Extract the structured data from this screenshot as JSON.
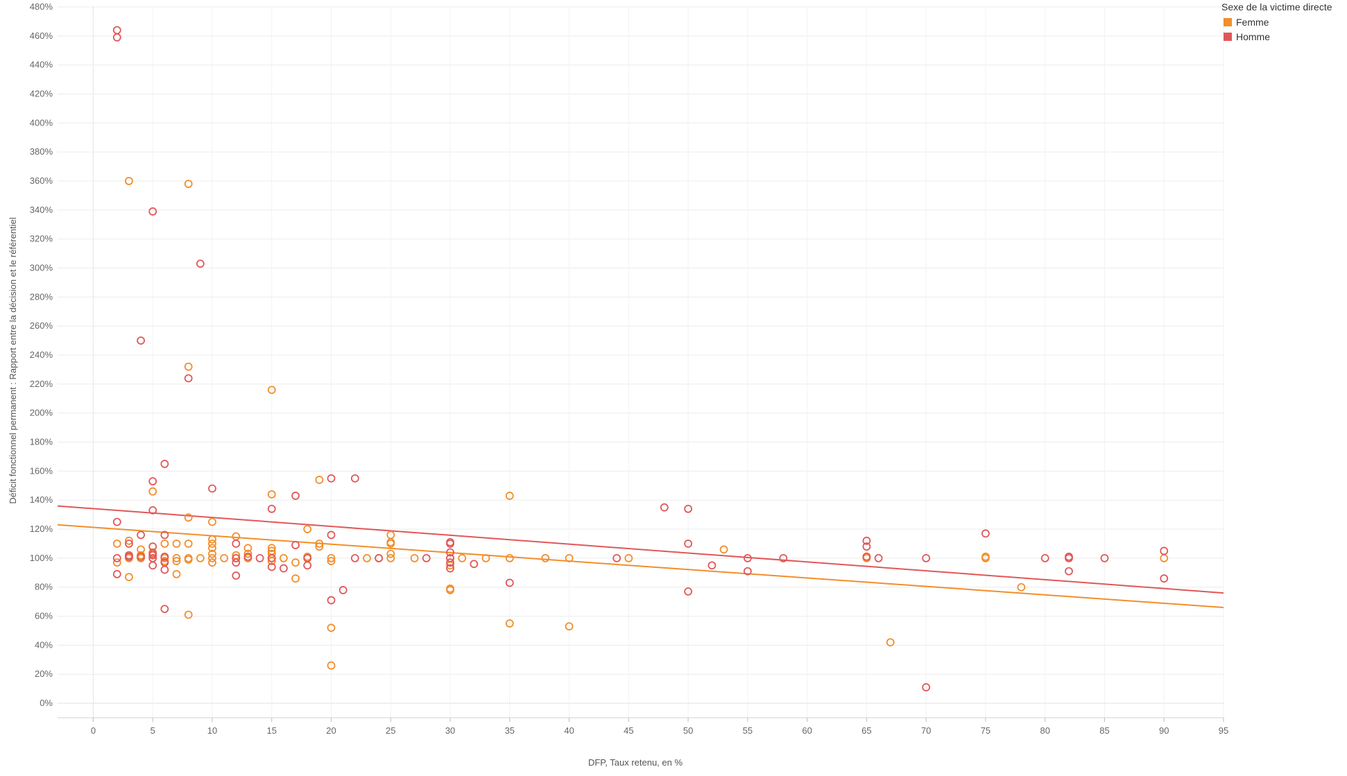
{
  "chart_data": {
    "type": "scatter",
    "title": "",
    "xlabel": "DFP, Taux retenu, en %",
    "ylabel": "Déficit fonctionnel permanent : Rapport entre la décision et le référentiel",
    "xlim": [
      -3,
      95
    ],
    "ylim": [
      -10,
      480
    ],
    "x_ticks": [
      0,
      5,
      10,
      15,
      20,
      25,
      30,
      35,
      40,
      45,
      50,
      55,
      60,
      65,
      70,
      75,
      80,
      85,
      90,
      95
    ],
    "y_ticks": [
      0,
      20,
      40,
      60,
      80,
      100,
      120,
      140,
      160,
      180,
      200,
      220,
      240,
      260,
      280,
      300,
      320,
      340,
      360,
      380,
      400,
      420,
      440,
      460,
      480
    ],
    "y_tick_labels": [
      "0%",
      "20%",
      "40%",
      "60%",
      "80%",
      "100%",
      "120%",
      "140%",
      "160%",
      "180%",
      "200%",
      "220%",
      "240%",
      "260%",
      "280%",
      "300%",
      "320%",
      "340%",
      "360%",
      "380%",
      "400%",
      "420%",
      "440%",
      "460%",
      "480%"
    ],
    "grid": true,
    "marker": "open-circle",
    "legend": {
      "title": "Sexe de la victime directe",
      "position": "top-right"
    },
    "series": [
      {
        "name": "Femme",
        "color": "#F28E2B",
        "trend": [
          [
            -3,
            123
          ],
          [
            95,
            66
          ]
        ],
        "points": [
          [
            2,
            110
          ],
          [
            2,
            97
          ],
          [
            3,
            360
          ],
          [
            3,
            112
          ],
          [
            3,
            101
          ],
          [
            3,
            100
          ],
          [
            3,
            87
          ],
          [
            4,
            106
          ],
          [
            4,
            102
          ],
          [
            4,
            100
          ],
          [
            5,
            146
          ],
          [
            5,
            104
          ],
          [
            5,
            100
          ],
          [
            6,
            110
          ],
          [
            6,
            100
          ],
          [
            6,
            98
          ],
          [
            7,
            110
          ],
          [
            7,
            100
          ],
          [
            7,
            98
          ],
          [
            7,
            89
          ],
          [
            8,
            358
          ],
          [
            8,
            232
          ],
          [
            8,
            128
          ],
          [
            8,
            110
          ],
          [
            8,
            100
          ],
          [
            8,
            99
          ],
          [
            8,
            61
          ],
          [
            9,
            100
          ],
          [
            10,
            125
          ],
          [
            10,
            113
          ],
          [
            10,
            110
          ],
          [
            10,
            107
          ],
          [
            10,
            103
          ],
          [
            10,
            100
          ],
          [
            10,
            97
          ],
          [
            11,
            100
          ],
          [
            12,
            115
          ],
          [
            12,
            102
          ],
          [
            12,
            100
          ],
          [
            13,
            107
          ],
          [
            13,
            103
          ],
          [
            13,
            100
          ],
          [
            15,
            216
          ],
          [
            15,
            144
          ],
          [
            15,
            107
          ],
          [
            15,
            105
          ],
          [
            15,
            103
          ],
          [
            15,
            100
          ],
          [
            15,
            98
          ],
          [
            16,
            100
          ],
          [
            17,
            97
          ],
          [
            17,
            86
          ],
          [
            18,
            120
          ],
          [
            18,
            101
          ],
          [
            18,
            100
          ],
          [
            19,
            154
          ],
          [
            19,
            110
          ],
          [
            19,
            108
          ],
          [
            20,
            100
          ],
          [
            20,
            98
          ],
          [
            20,
            52
          ],
          [
            20,
            26
          ],
          [
            23,
            100
          ],
          [
            24,
            100
          ],
          [
            25,
            116
          ],
          [
            25,
            111
          ],
          [
            25,
            110
          ],
          [
            25,
            103
          ],
          [
            25,
            100
          ],
          [
            27,
            100
          ],
          [
            30,
            100
          ],
          [
            30,
            95
          ],
          [
            30,
            79
          ],
          [
            30,
            78
          ],
          [
            31,
            100
          ],
          [
            33,
            100
          ],
          [
            35,
            143
          ],
          [
            35,
            100
          ],
          [
            35,
            55
          ],
          [
            38,
            100
          ],
          [
            40,
            100
          ],
          [
            40,
            53
          ],
          [
            45,
            100
          ],
          [
            53,
            106
          ],
          [
            65,
            101
          ],
          [
            65,
            100
          ],
          [
            67,
            42
          ],
          [
            75,
            101
          ],
          [
            75,
            100
          ],
          [
            78,
            80
          ],
          [
            90,
            100
          ]
        ]
      },
      {
        "name": "Homme",
        "color": "#E15759",
        "trend": [
          [
            -3,
            136
          ],
          [
            95,
            76
          ]
        ],
        "points": [
          [
            2,
            464
          ],
          [
            2,
            459
          ],
          [
            2,
            125
          ],
          [
            2,
            100
          ],
          [
            2,
            89
          ],
          [
            3,
            110
          ],
          [
            3,
            102
          ],
          [
            3,
            101
          ],
          [
            4,
            250
          ],
          [
            4,
            116
          ],
          [
            4,
            101
          ],
          [
            5,
            339
          ],
          [
            5,
            153
          ],
          [
            5,
            133
          ],
          [
            5,
            108
          ],
          [
            5,
            103
          ],
          [
            5,
            102
          ],
          [
            5,
            100
          ],
          [
            5,
            95
          ],
          [
            6,
            165
          ],
          [
            6,
            116
          ],
          [
            6,
            101
          ],
          [
            6,
            97
          ],
          [
            6,
            92
          ],
          [
            6,
            65
          ],
          [
            9,
            303
          ],
          [
            8,
            224
          ],
          [
            10,
            148
          ],
          [
            12,
            110
          ],
          [
            12,
            100
          ],
          [
            12,
            97
          ],
          [
            12,
            88
          ],
          [
            13,
            101
          ],
          [
            14,
            100
          ],
          [
            15,
            134
          ],
          [
            15,
            100
          ],
          [
            15,
            94
          ],
          [
            16,
            93
          ],
          [
            17,
            143
          ],
          [
            17,
            109
          ],
          [
            18,
            100
          ],
          [
            18,
            95
          ],
          [
            20,
            155
          ],
          [
            20,
            116
          ],
          [
            20,
            71
          ],
          [
            21,
            78
          ],
          [
            22,
            155
          ],
          [
            22,
            100
          ],
          [
            24,
            100
          ],
          [
            28,
            100
          ],
          [
            30,
            111
          ],
          [
            30,
            110
          ],
          [
            30,
            104
          ],
          [
            30,
            100
          ],
          [
            30,
            97
          ],
          [
            30,
            93
          ],
          [
            32,
            96
          ],
          [
            35,
            83
          ],
          [
            44,
            100
          ],
          [
            48,
            135
          ],
          [
            50,
            134
          ],
          [
            50,
            110
          ],
          [
            50,
            77
          ],
          [
            52,
            95
          ],
          [
            55,
            100
          ],
          [
            55,
            91
          ],
          [
            58,
            100
          ],
          [
            65,
            112
          ],
          [
            65,
            108
          ],
          [
            65,
            101
          ],
          [
            66,
            100
          ],
          [
            70,
            100
          ],
          [
            70,
            11
          ],
          [
            75,
            117
          ],
          [
            80,
            100
          ],
          [
            82,
            101
          ],
          [
            82,
            100
          ],
          [
            82,
            91
          ],
          [
            85,
            100
          ],
          [
            90,
            105
          ],
          [
            90,
            86
          ]
        ]
      }
    ]
  }
}
